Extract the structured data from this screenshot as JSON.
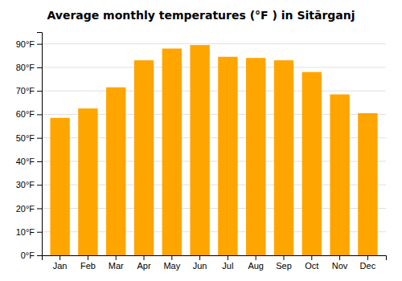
{
  "chart_data": {
    "type": "bar",
    "title": "Average monthly temperatures (°F ) in Sitārganj",
    "categories": [
      "Jan",
      "Feb",
      "Mar",
      "Apr",
      "May",
      "Jun",
      "Jul",
      "Aug",
      "Sep",
      "Oct",
      "Nov",
      "Dec"
    ],
    "values": [
      58.5,
      62.5,
      71.5,
      83.0,
      88.0,
      89.5,
      84.5,
      84.0,
      83.0,
      78.0,
      68.5,
      60.5
    ],
    "color": "#FFA500",
    "ylim": [
      0,
      95
    ],
    "yticks": [
      {
        "value": 0,
        "label": "0°F"
      },
      {
        "value": 10,
        "label": "10°F"
      },
      {
        "value": 20,
        "label": "20°F"
      },
      {
        "value": 30,
        "label": "30°F"
      },
      {
        "value": 40,
        "label": "40°F"
      },
      {
        "value": 50,
        "label": "50°F"
      },
      {
        "value": 60,
        "label": "60°F"
      },
      {
        "value": 70,
        "label": "70°F"
      },
      {
        "value": 80,
        "label": "80°F"
      },
      {
        "value": 90,
        "label": "90°F"
      }
    ],
    "grid": true
  }
}
